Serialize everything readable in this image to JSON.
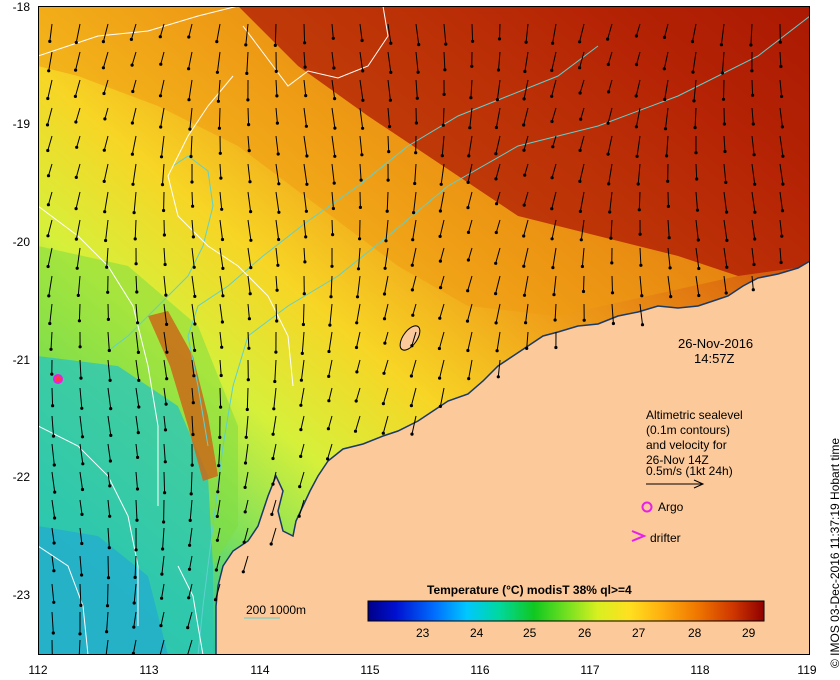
{
  "map": {
    "lat_labels": [
      "-18",
      "-19",
      "-20",
      "-21",
      "-22",
      "-23"
    ],
    "lon_labels": [
      "112",
      "113",
      "114",
      "115",
      "116",
      "117",
      "118",
      "119"
    ],
    "date_line1": "26-Nov-2016",
    "date_line2": "14:57Z",
    "legend_lines": [
      "Altimetric sealevel",
      "(0.1m contours)",
      "and velocity for",
      "26-Nov 14Z",
      "0.5m/s (1kt 24h)"
    ],
    "argo_label": "Argo",
    "drifter_label": "drifter",
    "isobath_label": "200  1000m",
    "colorbar_title": "Temperature (°C) modisT 38% ql>=4",
    "colorbar_ticks": [
      "23",
      "24",
      "25",
      "26",
      "27",
      "28",
      "29"
    ],
    "credit": "© IMOS 03-Dec-2016 11:37:19 Hobart time",
    "colors": {
      "land": "#fbc99a",
      "argo_marker": "#e81fe8",
      "isobath": "#5fd0cf"
    }
  }
}
